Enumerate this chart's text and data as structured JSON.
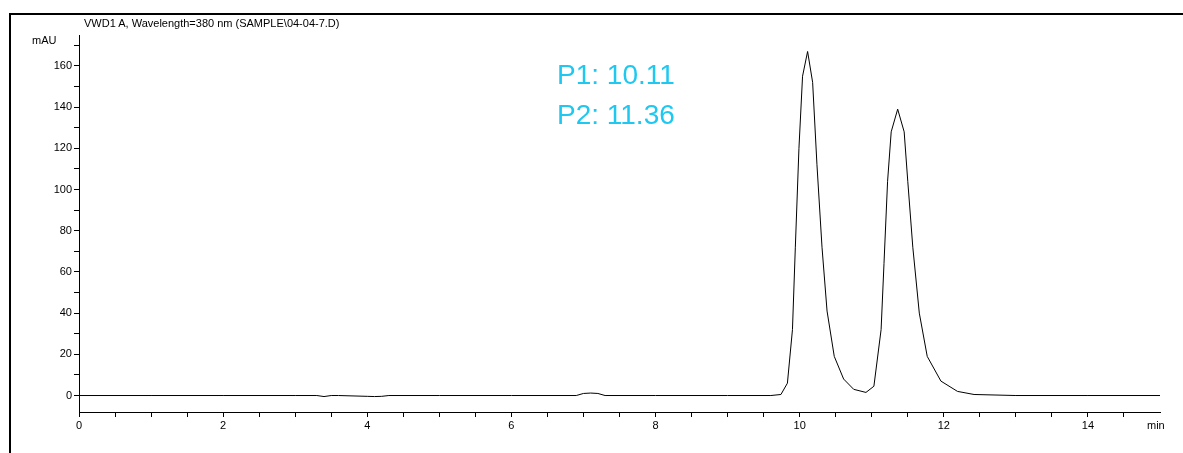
{
  "chart_data": {
    "type": "line",
    "title": "VWD1 A, Wavelength=380 nm (SAMPLE\\04-04-7.D)",
    "xlabel": "min",
    "ylabel": "mAU",
    "annotations": [
      "P1: 10.11",
      "P2: 11.36"
    ],
    "x": [
      0,
      1,
      2,
      3,
      3.3,
      3.4,
      3.5,
      3.6,
      4.0,
      4.1,
      4.2,
      4.3,
      5,
      6,
      6.9,
      7.0,
      7.1,
      7.2,
      7.3,
      8,
      9,
      9.6,
      9.74,
      9.83,
      9.9,
      9.94,
      9.99,
      10.04,
      10.11,
      10.18,
      10.24,
      10.31,
      10.38,
      10.48,
      10.61,
      10.75,
      10.92,
      11.03,
      11.13,
      11.17,
      11.22,
      11.27,
      11.36,
      11.45,
      11.5,
      11.57,
      11.66,
      11.77,
      11.96,
      12.19,
      12.42,
      13,
      14,
      15
    ],
    "values": [
      0,
      0,
      0,
      0,
      0,
      -0.5,
      0,
      0,
      -0.4,
      -0.5,
      -0.4,
      0,
      0,
      0,
      0,
      1,
      1.2,
      1,
      0,
      0,
      0,
      0,
      0.5,
      6,
      32,
      72,
      120,
      155,
      167,
      152,
      112,
      72,
      41,
      19,
      8,
      3,
      1.5,
      4.5,
      32,
      64,
      104,
      128,
      139,
      128,
      104,
      72,
      40,
      19,
      7,
      2,
      0.5,
      0,
      0,
      0
    ],
    "color": "#000000",
    "marker": "none",
    "line_style": "solid",
    "grid": false,
    "legend": false,
    "xlim": [
      0,
      15
    ],
    "ylim": [
      -8,
      175
    ],
    "xticks": [
      0,
      {
        "value": 0.5,
        "label": null
      },
      {
        "value": 1,
        "label": null
      },
      {
        "value": 1.5,
        "label": null
      },
      2,
      {
        "value": 2.5,
        "label": null
      },
      {
        "value": 3,
        "label": null
      },
      {
        "value": 3.5,
        "label": null
      },
      4,
      {
        "value": 4.5,
        "label": null
      },
      {
        "value": 5,
        "label": null
      },
      {
        "value": 5.5,
        "label": null
      },
      6,
      {
        "value": 6.5,
        "label": null
      },
      {
        "value": 7,
        "label": null
      },
      {
        "value": 7.5,
        "label": null
      },
      8,
      {
        "value": 8.5,
        "label": null
      },
      {
        "value": 9,
        "label": null
      },
      {
        "value": 9.5,
        "label": null
      },
      10,
      {
        "value": 10.5,
        "label": null
      },
      {
        "value": 11,
        "label": null
      },
      {
        "value": 11.5,
        "label": null
      },
      12,
      {
        "value": 12.5,
        "label": null
      },
      {
        "value": 13,
        "label": null
      },
      {
        "value": 13.5,
        "label": null
      },
      14,
      {
        "value": 14.5,
        "label": null
      }
    ],
    "yticks": [
      0,
      {
        "value": 10,
        "label": null
      },
      20,
      {
        "value": 30,
        "label": null
      },
      40,
      {
        "value": 50,
        "label": null
      },
      60,
      {
        "value": 70,
        "label": null
      },
      80,
      {
        "value": 90,
        "label": null
      },
      100,
      {
        "value": 110,
        "label": null
      },
      120,
      {
        "value": 130,
        "label": null
      },
      140,
      {
        "value": 150,
        "label": null
      },
      160,
      {
        "value": 170,
        "label": null
      }
    ]
  }
}
